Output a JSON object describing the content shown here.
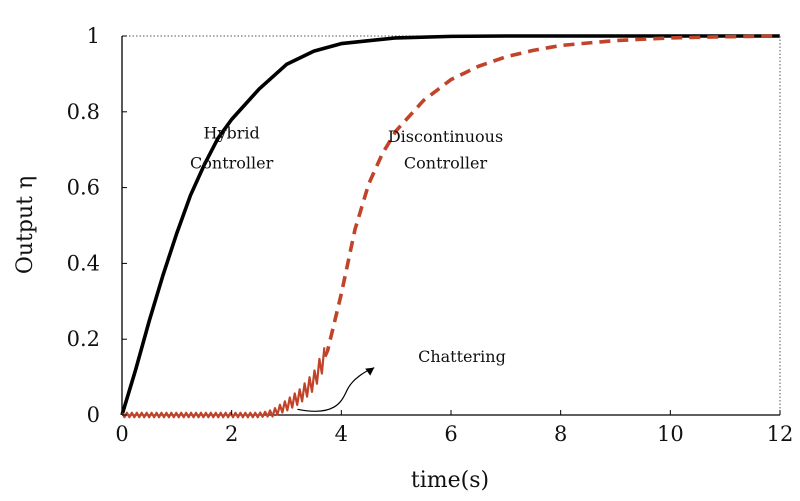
{
  "chart_data": {
    "type": "line",
    "xlabel": "time(s)",
    "ylabel": "Output η",
    "xlim": [
      0,
      12
    ],
    "ylim": [
      0,
      1
    ],
    "xticks": [
      "0",
      "2",
      "4",
      "6",
      "8",
      "10",
      "12"
    ],
    "yticks": [
      "0",
      "0.2",
      "0.4",
      "0.6",
      "0.8",
      "1"
    ],
    "grid": false,
    "series": [
      {
        "name": "Hybrid Controller",
        "style": "solid",
        "color": "#000000",
        "x": [
          0,
          0.25,
          0.5,
          0.75,
          1,
          1.25,
          1.5,
          1.75,
          2,
          2.5,
          3,
          3.5,
          4,
          5,
          6,
          7,
          8,
          9,
          10,
          11,
          12
        ],
        "y": [
          0,
          0.12,
          0.25,
          0.37,
          0.48,
          0.58,
          0.66,
          0.73,
          0.78,
          0.86,
          0.925,
          0.96,
          0.98,
          0.995,
          0.999,
          1,
          1,
          1,
          1,
          1,
          1
        ]
      },
      {
        "name": "Discontinuous Controller",
        "style": "dashed",
        "color": "#c0432a",
        "x": [
          0,
          0.5,
          1,
          1.5,
          2,
          2.5,
          2.75,
          3,
          3.25,
          3.5,
          3.75,
          4,
          4.25,
          4.5,
          4.75,
          5,
          5.5,
          6,
          6.5,
          7,
          7.5,
          8,
          9,
          10,
          11,
          12
        ],
        "y": [
          0,
          0,
          0,
          0,
          0,
          0,
          0.005,
          0.025,
          0.05,
          0.09,
          0.17,
          0.32,
          0.49,
          0.61,
          0.69,
          0.75,
          0.83,
          0.885,
          0.92,
          0.945,
          0.962,
          0.975,
          0.988,
          0.995,
          0.998,
          1.0
        ]
      }
    ],
    "annotations": [
      {
        "text": "Hybrid",
        "x": 2.0,
        "y": 0.73
      },
      {
        "text": "Controller",
        "x": 2.0,
        "y": 0.65
      },
      {
        "text": "Discontinuous",
        "x": 5.9,
        "y": 0.72
      },
      {
        "text": "Controller",
        "x": 5.9,
        "y": 0.65
      },
      {
        "text": "Chattering",
        "x": 5.4,
        "y": 0.14
      }
    ],
    "chattering_region": {
      "x_start": 0,
      "x_end": 3.7
    }
  },
  "colors": {
    "axis": "#000000",
    "dashed_series": "#c0432a"
  }
}
